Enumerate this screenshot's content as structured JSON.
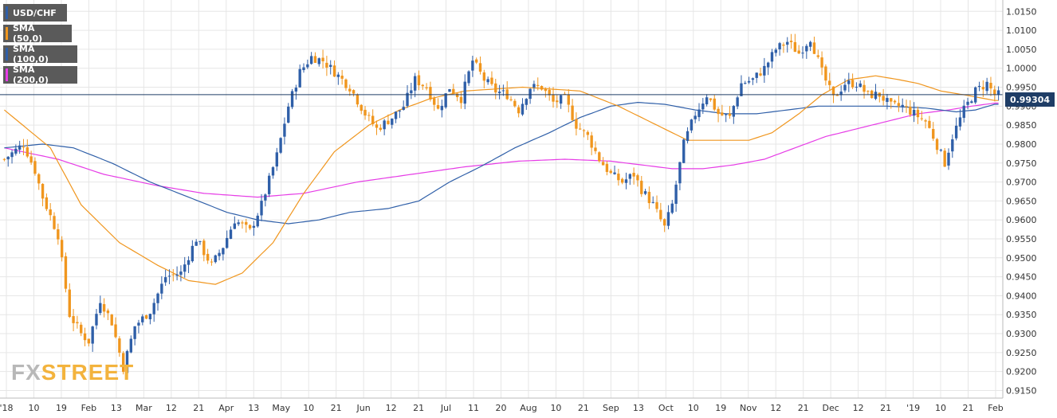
{
  "legend": [
    {
      "label": "USD/CHF",
      "color": "#2f5fa8"
    },
    {
      "label": "SMA (50,0)",
      "color": "#f0961e"
    },
    {
      "label": "SMA (100,0)",
      "color": "#2f5fa8"
    },
    {
      "label": "SMA (200,0)",
      "color": "#e63ce6"
    }
  ],
  "price_tag": "0.99304",
  "logo": {
    "fx": "FX",
    "street": "STREET"
  },
  "colors": {
    "up": "#2f5fa8",
    "down": "#f0961e",
    "sma50": "#f0961e",
    "sma100": "#2f5fa8",
    "sma200": "#e63ce6",
    "grid": "#e6e6e6",
    "price_line": "#1f3d66"
  },
  "chart_data": {
    "type": "candlestick",
    "symbol": "USD/CHF",
    "current_price": 0.99304,
    "ylim": [
      0.913,
      1.018
    ],
    "y_ticks": [
      "0.9150",
      "0.9200",
      "0.9250",
      "0.9300",
      "0.9350",
      "0.9400",
      "0.9450",
      "0.9500",
      "0.9550",
      "0.9600",
      "0.9650",
      "0.9700",
      "0.9750",
      "0.9800",
      "0.9850",
      "0.9900",
      "0.9950",
      "1.0000",
      "1.0050",
      "1.0100",
      "1.0150"
    ],
    "x_ticks": [
      "'18",
      "10",
      "19",
      "Feb",
      "13",
      "Mar",
      "12",
      "21",
      "Apr",
      "13",
      "May",
      "10",
      "21",
      "Jun",
      "12",
      "21",
      "Jul",
      "11",
      "20",
      "Aug",
      "10",
      "21",
      "Sep",
      "13",
      "Oct",
      "10",
      "19",
      "Nov",
      "12",
      "21",
      "Dec",
      "12",
      "21",
      "'19",
      "10",
      "21",
      "Feb"
    ],
    "close_anchors": [
      [
        0,
        0.976
      ],
      [
        5,
        0.98
      ],
      [
        8,
        0.973
      ],
      [
        10,
        0.966
      ],
      [
        14,
        0.956
      ],
      [
        17,
        0.935
      ],
      [
        20,
        0.93
      ],
      [
        22,
        0.928
      ],
      [
        25,
        0.939
      ],
      [
        28,
        0.933
      ],
      [
        31,
        0.921
      ],
      [
        34,
        0.932
      ],
      [
        38,
        0.936
      ],
      [
        42,
        0.945
      ],
      [
        46,
        0.946
      ],
      [
        50,
        0.955
      ],
      [
        54,
        0.948
      ],
      [
        57,
        0.953
      ],
      [
        60,
        0.96
      ],
      [
        64,
        0.957
      ],
      [
        67,
        0.964
      ],
      [
        71,
        0.977
      ],
      [
        74,
        0.99
      ],
      [
        77,
        0.999
      ],
      [
        80,
        1.003
      ],
      [
        83,
        1.002
      ],
      [
        86,
        0.999
      ],
      [
        90,
        0.995
      ],
      [
        94,
        0.988
      ],
      [
        97,
        0.984
      ],
      [
        101,
        0.987
      ],
      [
        104,
        0.99
      ],
      [
        107,
        0.997
      ],
      [
        110,
        0.995
      ],
      [
        113,
        0.989
      ],
      [
        116,
        0.995
      ],
      [
        119,
        0.992
      ],
      [
        122,
        1.002
      ],
      [
        125,
        0.997
      ],
      [
        128,
        0.994
      ],
      [
        131,
        0.993
      ],
      [
        134,
        0.989
      ],
      [
        137,
        0.995
      ],
      [
        140,
        0.995
      ],
      [
        143,
        0.991
      ],
      [
        146,
        0.992
      ],
      [
        149,
        0.985
      ],
      [
        152,
        0.982
      ],
      [
        155,
        0.976
      ],
      [
        158,
        0.972
      ],
      [
        161,
        0.97
      ],
      [
        164,
        0.972
      ],
      [
        166,
        0.968
      ],
      [
        169,
        0.964
      ],
      [
        172,
        0.958
      ],
      [
        174,
        0.964
      ],
      [
        177,
        0.98
      ],
      [
        180,
        0.988
      ],
      [
        183,
        0.993
      ],
      [
        186,
        0.988
      ],
      [
        189,
        0.987
      ],
      [
        192,
        0.996
      ],
      [
        195,
        0.997
      ],
      [
        198,
        1.0
      ],
      [
        201,
        1.005
      ],
      [
        204,
        1.007
      ],
      [
        207,
        1.004
      ],
      [
        210,
        1.008
      ],
      [
        213,
        0.999
      ],
      [
        216,
        0.992
      ],
      [
        219,
        0.996
      ],
      [
        222,
        0.996
      ],
      [
        225,
        0.993
      ],
      [
        228,
        0.993
      ],
      [
        231,
        0.99
      ],
      [
        234,
        0.99
      ],
      [
        237,
        0.988
      ],
      [
        240,
        0.986
      ],
      [
        242,
        0.982
      ],
      [
        245,
        0.975
      ],
      [
        247,
        0.982
      ],
      [
        250,
        0.989
      ],
      [
        253,
        0.994
      ],
      [
        256,
        0.996
      ],
      [
        258,
        0.993
      ]
    ],
    "sma_50": [
      [
        0,
        0.989
      ],
      [
        12,
        0.979
      ],
      [
        20,
        0.964
      ],
      [
        30,
        0.954
      ],
      [
        40,
        0.948
      ],
      [
        48,
        0.944
      ],
      [
        55,
        0.943
      ],
      [
        62,
        0.946
      ],
      [
        70,
        0.954
      ],
      [
        78,
        0.967
      ],
      [
        86,
        0.978
      ],
      [
        95,
        0.985
      ],
      [
        103,
        0.989
      ],
      [
        111,
        0.992
      ],
      [
        120,
        0.994
      ],
      [
        135,
        0.995
      ],
      [
        150,
        0.994
      ],
      [
        160,
        0.99
      ],
      [
        170,
        0.985
      ],
      [
        178,
        0.981
      ],
      [
        186,
        0.981
      ],
      [
        194,
        0.981
      ],
      [
        200,
        0.983
      ],
      [
        207,
        0.988
      ],
      [
        213,
        0.993
      ],
      [
        220,
        0.997
      ],
      [
        227,
        0.998
      ],
      [
        233,
        0.997
      ],
      [
        238,
        0.996
      ],
      [
        244,
        0.994
      ],
      [
        250,
        0.993
      ],
      [
        258,
        0.9915
      ]
    ],
    "sma_100": [
      [
        0,
        0.979
      ],
      [
        10,
        0.98
      ],
      [
        18,
        0.979
      ],
      [
        28,
        0.975
      ],
      [
        38,
        0.97
      ],
      [
        48,
        0.966
      ],
      [
        58,
        0.962
      ],
      [
        66,
        0.96
      ],
      [
        74,
        0.959
      ],
      [
        82,
        0.96
      ],
      [
        90,
        0.962
      ],
      [
        100,
        0.963
      ],
      [
        108,
        0.965
      ],
      [
        116,
        0.97
      ],
      [
        124,
        0.974
      ],
      [
        133,
        0.979
      ],
      [
        142,
        0.983
      ],
      [
        150,
        0.987
      ],
      [
        158,
        0.99
      ],
      [
        165,
        0.991
      ],
      [
        172,
        0.9905
      ],
      [
        180,
        0.989
      ],
      [
        188,
        0.988
      ],
      [
        196,
        0.988
      ],
      [
        204,
        0.989
      ],
      [
        212,
        0.99
      ],
      [
        220,
        0.99
      ],
      [
        230,
        0.99
      ],
      [
        240,
        0.9895
      ],
      [
        248,
        0.9885
      ],
      [
        253,
        0.989
      ],
      [
        258,
        0.9905
      ]
    ],
    "sma_200": [
      [
        0,
        0.979
      ],
      [
        14,
        0.976
      ],
      [
        26,
        0.972
      ],
      [
        40,
        0.969
      ],
      [
        52,
        0.967
      ],
      [
        66,
        0.966
      ],
      [
        78,
        0.967
      ],
      [
        92,
        0.97
      ],
      [
        106,
        0.972
      ],
      [
        120,
        0.974
      ],
      [
        134,
        0.9755
      ],
      [
        146,
        0.976
      ],
      [
        158,
        0.9755
      ],
      [
        166,
        0.9745
      ],
      [
        174,
        0.9735
      ],
      [
        182,
        0.9735
      ],
      [
        190,
        0.9745
      ],
      [
        198,
        0.976
      ],
      [
        206,
        0.979
      ],
      [
        214,
        0.982
      ],
      [
        222,
        0.984
      ],
      [
        230,
        0.986
      ],
      [
        238,
        0.988
      ],
      [
        246,
        0.989
      ],
      [
        252,
        0.99
      ],
      [
        258,
        0.9908
      ]
    ]
  }
}
